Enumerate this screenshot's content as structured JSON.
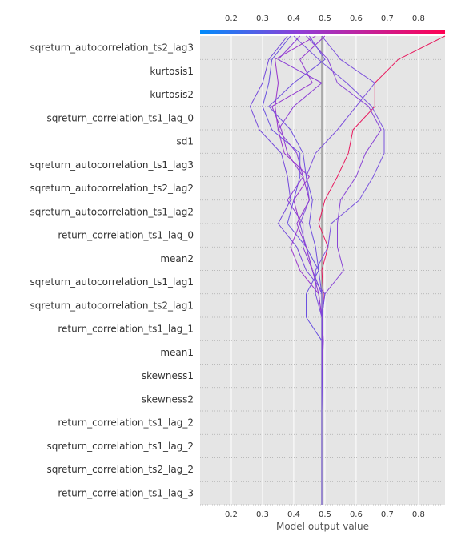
{
  "chart_data": {
    "type": "line",
    "subtype": "decision-plot",
    "xlabel": "Model output value",
    "xlim": [
      0.1,
      0.885
    ],
    "xticks": [
      0.2,
      0.3,
      0.4,
      0.5,
      0.6,
      0.7,
      0.8
    ],
    "top_xticks": [
      0.2,
      0.3,
      0.4,
      0.5,
      0.6,
      0.7,
      0.8
    ],
    "base_value": 0.49,
    "grid": true,
    "colormap": {
      "low": "#008bfb",
      "mid": "#8f3fd8",
      "high": "#ff0052"
    },
    "features": [
      "sqreturn_autocorrelation_ts2_lag3",
      "kurtosis1",
      "kurtosis2",
      "sqreturn_correlation_ts1_lag_0",
      "sd1",
      "sqreturn_autocorrelation_ts1_lag3",
      "sqreturn_autocorrelation_ts2_lag2",
      "sqreturn_autocorrelation_ts1_lag2",
      "return_correlation_ts1_lag_0",
      "mean2",
      "sqreturn_autocorrelation_ts1_lag1",
      "sqreturn_autocorrelation_ts2_lag1",
      "return_correlation_ts1_lag_1",
      "mean1",
      "skewness1",
      "skewness2",
      "return_correlation_ts1_lag_2",
      "sqreturn_correlation_ts1_lag_2",
      "sqreturn_correlation_ts2_lag_2",
      "return_correlation_ts1_lag_3"
    ],
    "series": [
      {
        "color": "#e8195e",
        "values": [
          0.885,
          0.735,
          0.66,
          0.66,
          0.59,
          0.575,
          0.54,
          0.5,
          0.48,
          0.51,
          0.49,
          0.495,
          0.493,
          0.492,
          0.491,
          0.49,
          0.49,
          0.49,
          0.49,
          0.49,
          0.49
        ]
      },
      {
        "color": "#7b55dd",
        "values": [
          0.4,
          0.48,
          0.57,
          0.65,
          0.69,
          0.69,
          0.655,
          0.61,
          0.52,
          0.51,
          0.47,
          0.47,
          0.49,
          0.493,
          0.492,
          0.491,
          0.49,
          0.49,
          0.49,
          0.49,
          0.49
        ]
      },
      {
        "color": "#8a45d6",
        "values": [
          0.44,
          0.51,
          0.54,
          0.64,
          0.68,
          0.63,
          0.6,
          0.55,
          0.54,
          0.54,
          0.56,
          0.5,
          0.49,
          0.495,
          0.492,
          0.491,
          0.49,
          0.49,
          0.49,
          0.49,
          0.49
        ]
      },
      {
        "color": "#7448db",
        "values": [
          0.38,
          0.32,
          0.3,
          0.26,
          0.29,
          0.36,
          0.38,
          0.39,
          0.35,
          0.41,
          0.44,
          0.5,
          0.49,
          0.492,
          0.491,
          0.49,
          0.49,
          0.49,
          0.49,
          0.49,
          0.49
        ]
      },
      {
        "color": "#6a50e0",
        "values": [
          0.39,
          0.33,
          0.32,
          0.3,
          0.33,
          0.42,
          0.42,
          0.4,
          0.38,
          0.44,
          0.48,
          0.44,
          0.44,
          0.49,
          0.491,
          0.49,
          0.49,
          0.49,
          0.49,
          0.49,
          0.49
        ]
      },
      {
        "color": "#9933cc",
        "values": [
          0.47,
          0.34,
          0.35,
          0.34,
          0.35,
          0.37,
          0.45,
          0.4,
          0.42,
          0.39,
          0.42,
          0.48,
          0.49,
          0.492,
          0.491,
          0.49,
          0.49,
          0.49,
          0.49,
          0.49,
          0.49
        ]
      },
      {
        "color": "#8c3ed6",
        "values": [
          0.42,
          0.35,
          0.49,
          0.4,
          0.35,
          0.41,
          0.43,
          0.38,
          0.43,
          0.43,
          0.46,
          0.49,
          0.491,
          0.49,
          0.49,
          0.49,
          0.49,
          0.49,
          0.49,
          0.49,
          0.49
        ]
      },
      {
        "color": "#7d50dc",
        "values": [
          0.49,
          0.55,
          0.66,
          0.6,
          0.54,
          0.47,
          0.44,
          0.45,
          0.42,
          0.44,
          0.46,
          0.49,
          0.49,
          0.49,
          0.49,
          0.49,
          0.49,
          0.49,
          0.49,
          0.49,
          0.49
        ]
      },
      {
        "color": "#9238cf",
        "values": [
          0.5,
          0.42,
          0.46,
          0.33,
          0.36,
          0.38,
          0.43,
          0.45,
          0.41,
          0.44,
          0.46,
          0.48,
          0.49,
          0.49,
          0.49,
          0.49,
          0.49,
          0.49,
          0.49,
          0.49,
          0.49
        ]
      },
      {
        "color": "#7050de",
        "values": [
          0.45,
          0.5,
          0.4,
          0.32,
          0.39,
          0.43,
          0.44,
          0.46,
          0.45,
          0.47,
          0.48,
          0.49,
          0.49,
          0.49,
          0.49,
          0.49,
          0.49,
          0.49,
          0.49,
          0.49,
          0.49
        ]
      }
    ]
  }
}
